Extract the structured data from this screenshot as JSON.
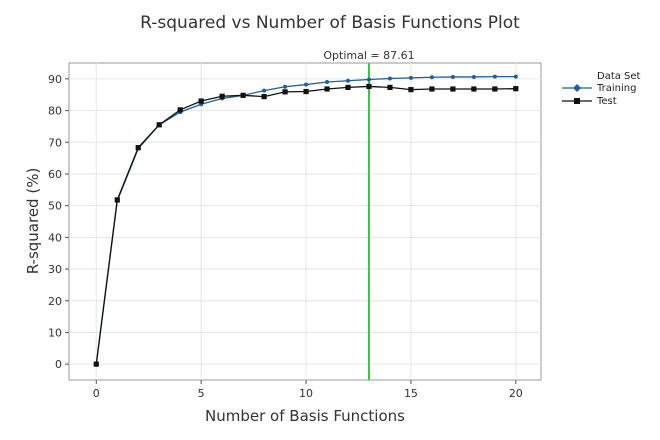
{
  "chart_data": {
    "type": "line",
    "title": "R-squared vs Number of Basis Functions Plot",
    "xlabel": "Number of Basis Functions",
    "ylabel": "R-squared (%)",
    "xlim": [
      -1.3,
      21.2
    ],
    "ylim": [
      -5,
      95
    ],
    "xticks": [
      0,
      5,
      10,
      15,
      20
    ],
    "yticks": [
      0,
      10,
      20,
      30,
      40,
      50,
      60,
      70,
      80,
      90
    ],
    "grid": true,
    "legend": {
      "title": "Data Set",
      "placement": "top-right-outside"
    },
    "annotation": {
      "label": "Optimal = 87.61",
      "x": 13,
      "color": "#2ecc40"
    },
    "x": [
      0,
      1,
      2,
      3,
      4,
      5,
      6,
      7,
      8,
      9,
      10,
      11,
      12,
      13,
      14,
      15,
      16,
      17,
      18,
      19,
      20
    ],
    "series": [
      {
        "name": "Training",
        "color": "#1f5f9e",
        "marker": "circle",
        "values": [
          0,
          51.5,
          68.0,
          75.5,
          79.5,
          82.0,
          83.8,
          84.8,
          86.3,
          87.5,
          88.2,
          89.0,
          89.4,
          89.8,
          90.1,
          90.3,
          90.5,
          90.6,
          90.6,
          90.7,
          90.7
        ]
      },
      {
        "name": "Test",
        "color": "#111111",
        "marker": "square",
        "values": [
          0,
          51.8,
          68.3,
          75.5,
          80.2,
          83.0,
          84.5,
          84.8,
          84.4,
          85.9,
          86.0,
          86.8,
          87.3,
          87.61,
          87.3,
          86.6,
          86.8,
          86.8,
          86.8,
          86.8,
          86.9
        ]
      }
    ]
  }
}
